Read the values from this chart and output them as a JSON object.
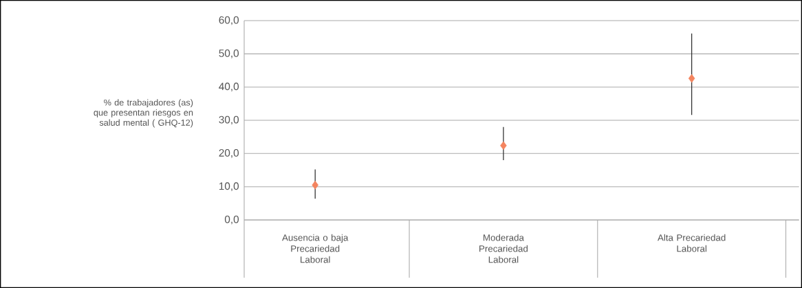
{
  "chart_data": {
    "type": "scatter",
    "ylabel": "% de trabajadores (as) que presentan riesgos en salud mental ( GHQ-12)",
    "categories": [
      "Ausencia o baja Precariedad Laboral",
      "Moderada Precariedad Laboral",
      "Alta Precariedad Laboral"
    ],
    "values": [
      10.5,
      22.4,
      42.6
    ],
    "errors": [
      [
        6.4,
        15.2
      ],
      [
        18.0,
        28.0
      ],
      [
        31.6,
        56.1
      ]
    ],
    "color": "#f4845f",
    "marker": "diamond",
    "grid": "y",
    "ylim": [
      0,
      60
    ],
    "yticks": [
      {
        "value": 0,
        "label": "0,0"
      },
      {
        "value": 10,
        "label": "10,0"
      },
      {
        "value": 20,
        "label": "20,0"
      },
      {
        "value": 30,
        "label": "30,0"
      },
      {
        "value": 40,
        "label": "40,0"
      },
      {
        "value": 50,
        "label": "50,0"
      },
      {
        "value": 60,
        "label": "60,0"
      }
    ]
  }
}
